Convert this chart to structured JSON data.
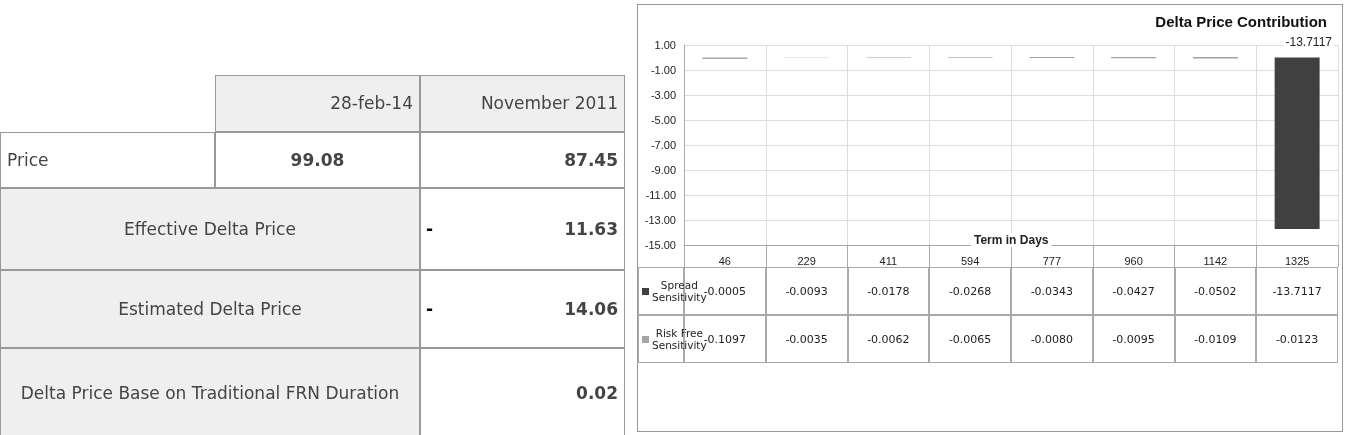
{
  "chart_data": [
    {
      "type": "other",
      "annotations": [
        "28-feb-14",
        "November 2011",
        "Price",
        "99.08",
        "87.45",
        "Effective Delta Price",
        "-",
        "11.63",
        "Estimated Delta Price",
        "-",
        "14.06",
        "Delta Price Base on Traditional FRN Duration",
        "0.02"
      ]
    },
    {
      "type": "bar",
      "title": "Delta Price Contribution",
      "xlabel": "Term in Days",
      "stacked": true,
      "grid": true,
      "legend": "bottom left",
      "annotations": [
        "-13.7117"
      ],
      "categories": [
        "46",
        "229",
        "411",
        "594",
        "777",
        "960",
        "1142",
        "1325"
      ],
      "ylim": [
        -15,
        1
      ],
      "yticks": [
        {
          "value": 1,
          "label": "1.00"
        },
        {
          "value": -1,
          "label": "-1.00"
        },
        {
          "value": -3,
          "label": "-3.00"
        },
        {
          "value": -5,
          "label": "-5.00"
        },
        {
          "value": -7,
          "label": "-7.00"
        },
        {
          "value": -9,
          "label": "-9.00"
        },
        {
          "value": -11,
          "label": "-11.00"
        },
        {
          "value": -13,
          "label": "-13.00"
        },
        {
          "value": -15,
          "label": "-15.00"
        }
      ],
      "series": [
        {
          "name": "Spread Sensitivity",
          "color": "#404040",
          "values": [
            -0.0005,
            -0.0093,
            -0.0178,
            -0.0268,
            -0.0343,
            -0.0427,
            -0.0502,
            -13.7117
          ],
          "value_labels": [
            "-0.0005",
            "-0.0093",
            "-0.0178",
            "-0.0268",
            "-0.0343",
            "-0.0427",
            "-0.0502",
            "-13.7117"
          ]
        },
        {
          "name": "Risk Free Sensitivity",
          "color": "#a6a6a6",
          "values": [
            -0.1097,
            -0.0035,
            -0.0062,
            -0.0065,
            -0.008,
            -0.0095,
            -0.0109,
            -0.0123
          ],
          "value_labels": [
            "-0.1097",
            "-0.0035",
            "-0.0062",
            "-0.0065",
            "-0.0080",
            "-0.0095",
            "-0.0109",
            "-0.0123"
          ]
        }
      ]
    }
  ]
}
